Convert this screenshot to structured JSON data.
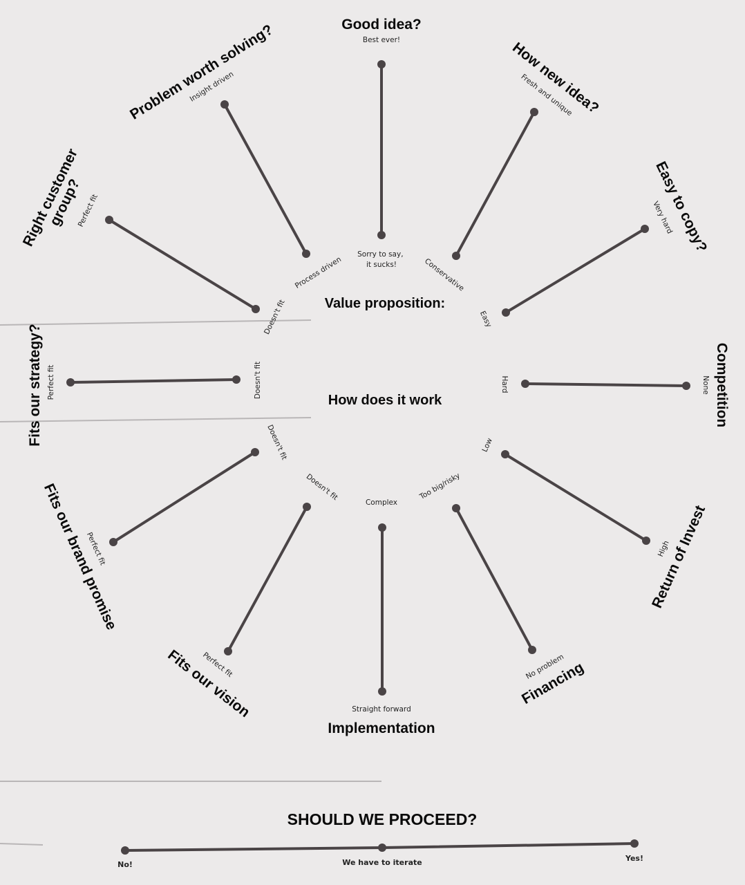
{
  "center": {
    "value_proposition": "Value proposition:",
    "how_it_works": "How does it work"
  },
  "spokes": [
    {
      "id": "good-idea",
      "question": "Good idea?",
      "high": "Best ever!",
      "low": "Sorry to say, it sucks!"
    },
    {
      "id": "how-new-idea",
      "question": "How new idea?",
      "high": "Fresh and unique",
      "low": "Conservative"
    },
    {
      "id": "easy-to-copy",
      "question": "Easy to copy?",
      "high": "Very hard",
      "low": "Easy"
    },
    {
      "id": "competition",
      "question": "Competition",
      "high": "None",
      "low": "Hard"
    },
    {
      "id": "return-of-invest",
      "question": "Return of Invest",
      "high": "High",
      "low": "Low"
    },
    {
      "id": "financing",
      "question": "Financing",
      "high": "No problem",
      "low": "Too big/risky"
    },
    {
      "id": "implementation",
      "question": "Implementation",
      "high": "Straight forward",
      "low": "Complex"
    },
    {
      "id": "fits-our-vision",
      "question": "Fits our vision",
      "high": "Perfect fit",
      "low": "Doesn't fit"
    },
    {
      "id": "fits-our-brand-promise",
      "question": "Fits our brand promise",
      "high": "Perfect fit",
      "low": "Doesn't fit"
    },
    {
      "id": "fits-our-strategy",
      "question": "Fits our strategy?",
      "high": "Perfect fit",
      "low": "Doesn't fit"
    },
    {
      "id": "right-customer-group",
      "question": "Right customer group?",
      "high": "Perfect fit",
      "low": "Doesn't fit"
    },
    {
      "id": "problem-worth-solving",
      "question": "Problem worth solving?",
      "high": "Insight driven",
      "low": "Process driven"
    }
  ],
  "proceed": {
    "title": "SHOULD WE PROCEED?",
    "left": "No!",
    "middle": "We have to iterate",
    "right": "Yes!"
  },
  "colors": {
    "background": "#eceaea",
    "line": "#4a4446",
    "text": "#0a0a0a"
  }
}
